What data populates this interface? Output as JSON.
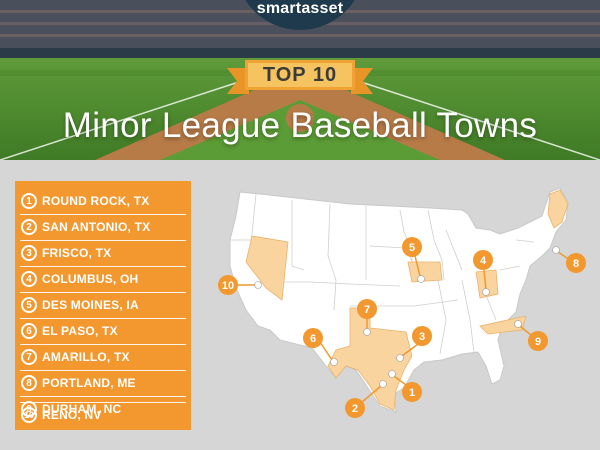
{
  "brand": "smartasset",
  "badge": "TOP 10",
  "title": "Minor League Baseball Towns",
  "colors": {
    "accent": "#f2982f",
    "highlight_state": "#fad49e",
    "brand_bg": "#1f3a4d",
    "land": "#ffffff",
    "background": "#d6d6d6"
  },
  "ranking": [
    {
      "rank": "1",
      "city": "ROUND ROCK, TX"
    },
    {
      "rank": "2",
      "city": "SAN ANTONIO, TX"
    },
    {
      "rank": "3",
      "city": "FRISCO, TX"
    },
    {
      "rank": "4",
      "city": "COLUMBUS, OH"
    },
    {
      "rank": "5",
      "city": "DES MOINES, IA"
    },
    {
      "rank": "6",
      "city": "EL PASO, TX"
    },
    {
      "rank": "7",
      "city": "AMARILLO, TX"
    },
    {
      "rank": "8",
      "city": "PORTLAND, ME"
    },
    {
      "rank": "9",
      "city": "DURHAM, NC"
    },
    {
      "rank": "10",
      "city": "RENO, NV"
    }
  ],
  "map": {
    "highlighted_states": [
      "TX",
      "IA",
      "OH",
      "ME",
      "NC",
      "NV"
    ],
    "marker_icon": "baseball-icon"
  }
}
